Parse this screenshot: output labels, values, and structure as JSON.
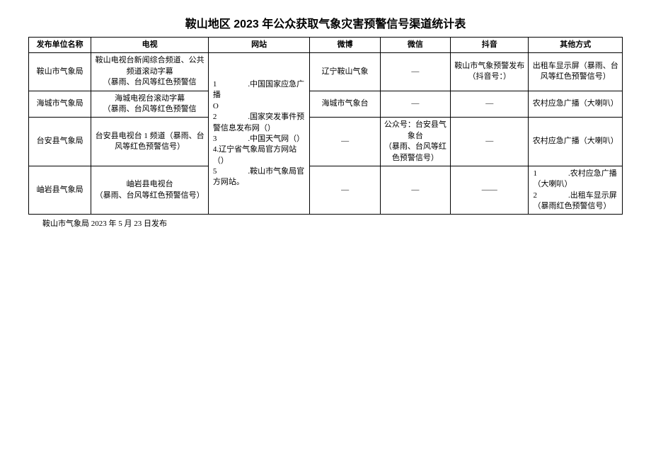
{
  "title": "鞍山地区 2023 年公众获取气象灾害预警信号渠道统计表",
  "headers": {
    "unit": "发布单位名称",
    "tv": "电视",
    "web": "网站",
    "weibo": "微博",
    "wechat": "微信",
    "douyin": "抖音",
    "other": "其他方式"
  },
  "web_content": "1　　　　.中国国家应急广播\nO\n2　　　　.国家突发事件预警信息发布网（）\n3　　　　.中国天气网（）\n4.辽宁省气象局官方网站（）\n5　　　　.鞍山市气象局官方网站。",
  "rows": [
    {
      "unit": "鞍山市气象局",
      "tv": "鞍山电视台新闻综合频道、公共频道滚动字幕\n（暴雨、台风等红色预警信",
      "weibo": "辽宁鞍山气象",
      "wechat": "—",
      "douyin": "鞍山市气象预警发布（抖音号：）",
      "other": "出租车显示屏（暴雨、台风等红色预警信号）"
    },
    {
      "unit": "海城市气象局",
      "tv": "海城电视台滚动字幕\n（暴雨、台风等红色预警信",
      "weibo": "海城市气象台",
      "wechat": "—",
      "douyin": "—",
      "other": "农村应急广播（大喇叭）"
    },
    {
      "unit": "台安县气象局",
      "tv": "台安县电视台 1 频道（暴雨、台风等红色预警信号）",
      "weibo": "—",
      "wechat": "公众号：台安县气象台\n（暴雨、台风等红色预警信号）",
      "douyin": "—",
      "other": "农村应急广播（大喇叭）"
    },
    {
      "unit": "岫岩县气象局",
      "tv": "岫岩县电视台\n（暴雨、台风等红色预警信号）",
      "weibo": "—",
      "wechat": "—",
      "douyin": "——",
      "other": "1　　　　.农村应急广播（大喇叭）\n2　　　　.出租车显示屏（暴雨红色预警信号）"
    }
  ],
  "footer": "鞍山市气象局 2023 年 5 月 23 日发布"
}
